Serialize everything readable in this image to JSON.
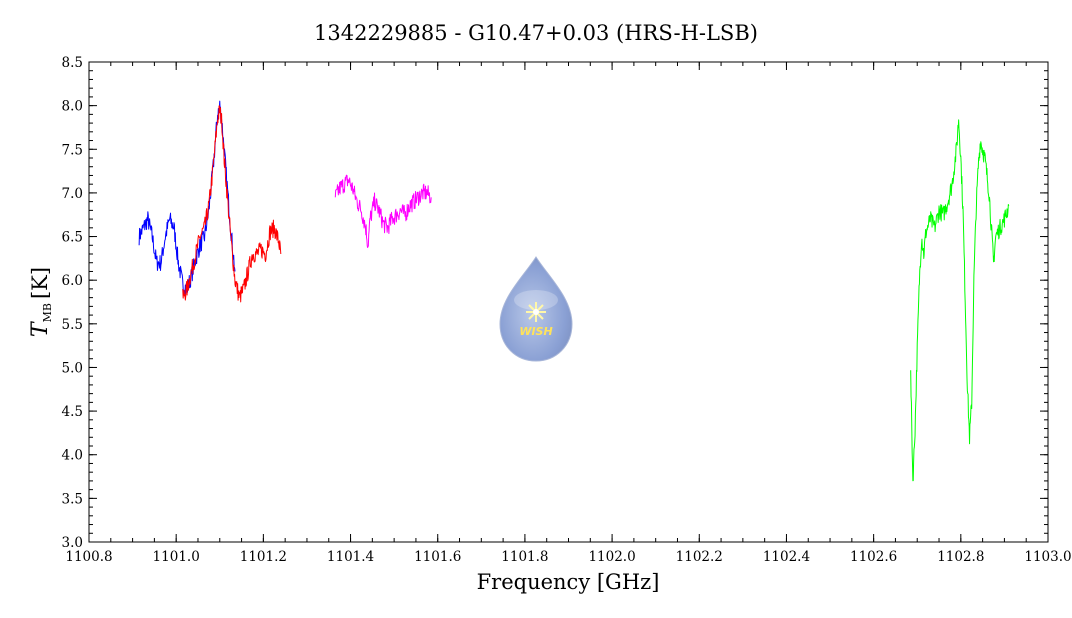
{
  "chart_data": {
    "type": "line",
    "title": "1342229885 - G10.47+0.03 (HRS-H-LSB)",
    "xlabel": "Frequency [GHz]",
    "ylabel_symbol": "T",
    "ylabel_subscript": "MB",
    "ylabel_unit": "[K]",
    "xlim": [
      1100.8,
      1103.0
    ],
    "ylim": [
      3.0,
      8.5
    ],
    "x_ticks": [
      "1100.8",
      "1101.0",
      "1101.2",
      "1101.4",
      "1101.6",
      "1101.8",
      "1102.0",
      "1102.2",
      "1102.4",
      "1102.6",
      "1102.8",
      "1103.0"
    ],
    "y_ticks": [
      "3.0",
      "3.5",
      "4.0",
      "4.5",
      "5.0",
      "5.5",
      "6.0",
      "6.5",
      "7.0",
      "7.5",
      "8.0",
      "8.5"
    ],
    "grid": false,
    "logo_text": "WISH",
    "series": [
      {
        "color": "#0000ff",
        "x": [
          1100.915,
          1100.925,
          1100.935,
          1100.945,
          1100.955,
          1100.965,
          1100.975,
          1100.985,
          1100.995,
          1101.005,
          1101.015,
          1101.025,
          1101.035,
          1101.045,
          1101.055,
          1101.065,
          1101.075,
          1101.085,
          1101.095,
          1101.1,
          1101.105,
          1101.11,
          1101.115,
          1101.125,
          1101.135
        ],
        "y": [
          6.5,
          6.6,
          6.7,
          6.5,
          6.2,
          6.2,
          6.5,
          6.7,
          6.6,
          6.2,
          5.95,
          5.9,
          6.05,
          6.25,
          6.4,
          6.5,
          6.8,
          7.3,
          7.9,
          8.0,
          7.8,
          7.5,
          7.2,
          6.6,
          6.1
        ]
      },
      {
        "color": "#ff0000",
        "x": [
          1101.015,
          1101.025,
          1101.035,
          1101.045,
          1101.055,
          1101.065,
          1101.075,
          1101.085,
          1101.095,
          1101.1,
          1101.105,
          1101.11,
          1101.115,
          1101.125,
          1101.135,
          1101.145,
          1101.155,
          1101.165,
          1101.175,
          1101.185,
          1101.195,
          1101.205,
          1101.215,
          1101.225,
          1101.235,
          1101.24
        ],
        "y": [
          5.8,
          5.9,
          6.1,
          6.3,
          6.5,
          6.6,
          6.85,
          7.3,
          7.85,
          7.95,
          7.8,
          7.4,
          7.1,
          6.5,
          6.0,
          5.8,
          5.9,
          6.1,
          6.3,
          6.3,
          6.35,
          6.3,
          6.55,
          6.6,
          6.45,
          6.3
        ]
      },
      {
        "color": "#ff00ff",
        "x": [
          1101.365,
          1101.375,
          1101.385,
          1101.395,
          1101.405,
          1101.415,
          1101.425,
          1101.435,
          1101.44,
          1101.445,
          1101.455,
          1101.465,
          1101.475,
          1101.485,
          1101.495,
          1101.505,
          1101.515,
          1101.525,
          1101.535,
          1101.545,
          1101.555,
          1101.565,
          1101.575,
          1101.585
        ],
        "y": [
          6.95,
          7.05,
          7.1,
          7.15,
          7.05,
          6.9,
          6.8,
          6.6,
          6.4,
          6.7,
          6.9,
          6.8,
          6.65,
          6.6,
          6.7,
          6.75,
          6.8,
          6.75,
          6.85,
          6.9,
          6.95,
          7.0,
          7.0,
          6.95
        ]
      },
      {
        "color": "#00ff00",
        "x": [
          1102.685,
          1102.69,
          1102.695,
          1102.7,
          1102.705,
          1102.71,
          1102.715,
          1102.72,
          1102.73,
          1102.74,
          1102.75,
          1102.76,
          1102.77,
          1102.78,
          1102.79,
          1102.795,
          1102.8,
          1102.805,
          1102.81,
          1102.815,
          1102.82,
          1102.825,
          1102.83,
          1102.835,
          1102.84,
          1102.845,
          1102.85,
          1102.855,
          1102.86,
          1102.865,
          1102.87,
          1102.875,
          1102.88,
          1102.89,
          1102.9,
          1102.91
        ],
        "y": [
          4.9,
          3.7,
          4.3,
          5.2,
          6.0,
          6.5,
          6.3,
          6.55,
          6.7,
          6.6,
          6.8,
          6.75,
          6.9,
          7.1,
          7.5,
          7.85,
          7.4,
          6.8,
          5.8,
          4.8,
          4.2,
          4.6,
          6.0,
          6.8,
          7.3,
          7.6,
          7.5,
          7.4,
          7.2,
          7.0,
          6.6,
          6.2,
          6.5,
          6.6,
          6.7,
          6.85
        ]
      }
    ]
  }
}
